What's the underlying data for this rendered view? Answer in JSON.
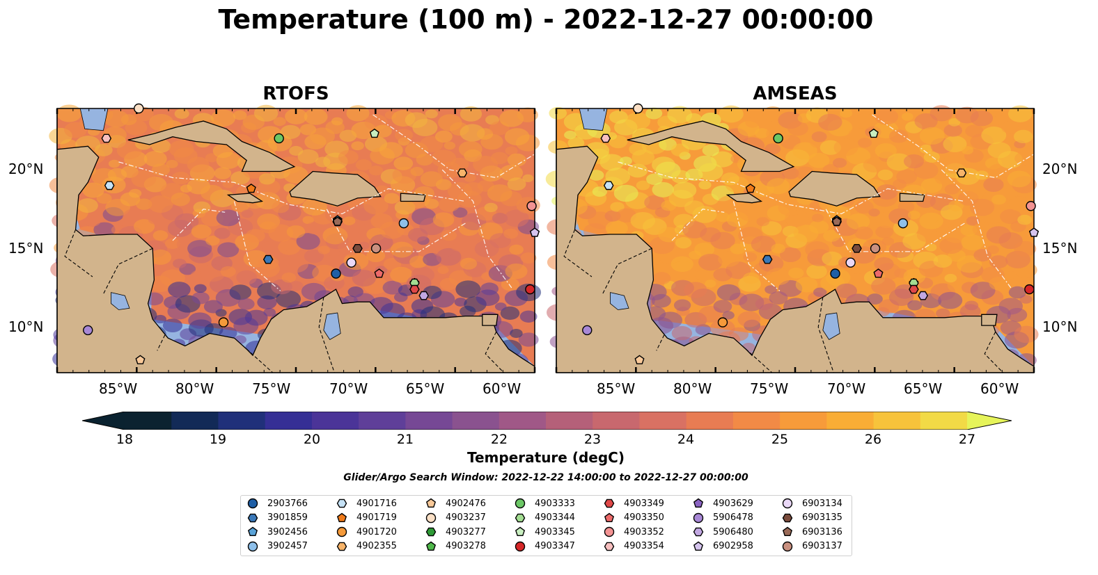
{
  "title": "Temperature (100 m) - 2022-12-27 00:00:00",
  "panels": [
    {
      "title": "RTOFS",
      "mode": "rtofs"
    },
    {
      "title": "AMSEAS",
      "mode": "amseas"
    }
  ],
  "axes": {
    "lon_labels": [
      "85°W",
      "80°W",
      "75°W",
      "70°W",
      "65°W",
      "60°W"
    ],
    "lat_labels": [
      "20°N",
      "15°N",
      "10°N"
    ],
    "lon_range": [
      -89.5,
      -58.5
    ],
    "lat_range": [
      7.1,
      23.9
    ]
  },
  "colorbar": {
    "label": "Temperature (degC)",
    "ticks": [
      "18",
      "19",
      "20",
      "21",
      "22",
      "23",
      "24",
      "25",
      "26",
      "27"
    ],
    "range": [
      18,
      27
    ],
    "colors": [
      "#0b2230",
      "#122a57",
      "#20307a",
      "#352f95",
      "#4b3498",
      "#5f3f99",
      "#764895",
      "#8a528f",
      "#a05887",
      "#b56079",
      "#c8686e",
      "#d97163",
      "#e87c53",
      "#f28a46",
      "#f79b3a",
      "#f9ad35",
      "#f7c33b",
      "#f2da46"
    ],
    "under_color": "#0a2230",
    "over_color": "#e6f45a"
  },
  "colors": {
    "land": "#d2b48c",
    "outside_ocean": "#96b4e0"
  },
  "search_window": "Glider/Argo Search Window: 2022-12-22 14:00:00 to 2022-12-27 00:00:00",
  "platforms": [
    {
      "id": "2903766",
      "marker": "circle",
      "color": "#1f5fa6"
    },
    {
      "id": "3901859",
      "marker": "hexagon",
      "color": "#3a78b8"
    },
    {
      "id": "3902456",
      "marker": "pentagon",
      "color": "#5aa3d8"
    },
    {
      "id": "3902457",
      "marker": "circle",
      "color": "#8ec0ea"
    },
    {
      "id": "4901716",
      "marker": "hexagon",
      "color": "#c6e2f6"
    },
    {
      "id": "4901719",
      "marker": "pentagon",
      "color": "#f07b1a"
    },
    {
      "id": "4901720",
      "marker": "circle",
      "color": "#f59a3a"
    },
    {
      "id": "4902355",
      "marker": "hexagon",
      "color": "#f7b46a"
    },
    {
      "id": "4902476",
      "marker": "pentagon",
      "color": "#f9c999"
    },
    {
      "id": "4903237",
      "marker": "circle",
      "color": "#fbe0c6"
    },
    {
      "id": "4903277",
      "marker": "hexagon",
      "color": "#2e9a36"
    },
    {
      "id": "4903278",
      "marker": "pentagon",
      "color": "#4fb84a"
    },
    {
      "id": "4903333",
      "marker": "circle",
      "color": "#6cc766"
    },
    {
      "id": "4903344",
      "marker": "hexagon",
      "color": "#a3dd92"
    },
    {
      "id": "4903345",
      "marker": "pentagon",
      "color": "#c8eec0"
    },
    {
      "id": "4903347",
      "marker": "circle",
      "color": "#d62728"
    },
    {
      "id": "4903349",
      "marker": "hexagon",
      "color": "#e04848"
    },
    {
      "id": "4903350",
      "marker": "pentagon",
      "color": "#ec6a6a"
    },
    {
      "id": "4903352",
      "marker": "circle",
      "color": "#f39393"
    },
    {
      "id": "4903354",
      "marker": "hexagon",
      "color": "#f8c0c0"
    },
    {
      "id": "4903629",
      "marker": "pentagon",
      "color": "#8a63c2"
    },
    {
      "id": "5906478",
      "marker": "circle",
      "color": "#a888d6"
    },
    {
      "id": "5906480",
      "marker": "hexagon",
      "color": "#c2a8e2"
    },
    {
      "id": "6902958",
      "marker": "pentagon",
      "color": "#d5c4ee"
    },
    {
      "id": "6903134",
      "marker": "circle",
      "color": "#ead8f7"
    },
    {
      "id": "6903135",
      "marker": "hexagon",
      "color": "#7a4b3c"
    },
    {
      "id": "6903136",
      "marker": "pentagon",
      "color": "#9a6a58"
    },
    {
      "id": "6903137",
      "marker": "circle",
      "color": "#c99080"
    }
  ],
  "positions": [
    {
      "id": "2903766",
      "lon": -71.4,
      "lat": 13.4
    },
    {
      "id": "3901859",
      "lon": -75.8,
      "lat": 14.3
    },
    {
      "id": "3902456",
      "lon": -71.3,
      "lat": 16.8
    },
    {
      "id": "3902457",
      "lon": -67.0,
      "lat": 16.6
    },
    {
      "id": "4901716",
      "lon": -86.1,
      "lat": 19.0
    },
    {
      "id": "4901719",
      "lon": -76.9,
      "lat": 18.8
    },
    {
      "id": "4901720",
      "lon": -78.7,
      "lat": 10.3
    },
    {
      "id": "4902355",
      "lon": -63.2,
      "lat": 19.8
    },
    {
      "id": "4902476",
      "lon": -84.1,
      "lat": 7.9
    },
    {
      "id": "4903237",
      "lon": -84.2,
      "lat": 23.9
    },
    {
      "id": "4903277",
      "lon": -71.3,
      "lat": 16.7
    },
    {
      "id": "4903278",
      "lon": -66.3,
      "lat": 12.8
    },
    {
      "id": "4903333",
      "lon": -75.1,
      "lat": 22.0
    },
    {
      "id": "4903344",
      "lon": -66.3,
      "lat": 12.8
    },
    {
      "id": "4903345",
      "lon": -68.9,
      "lat": 22.3
    },
    {
      "id": "4903347",
      "lon": -58.8,
      "lat": 12.4
    },
    {
      "id": "4903349",
      "lon": -66.3,
      "lat": 12.4
    },
    {
      "id": "4903350",
      "lon": -68.6,
      "lat": 13.4
    },
    {
      "id": "4903352",
      "lon": -58.7,
      "lat": 17.7
    },
    {
      "id": "4903354",
      "lon": -86.3,
      "lat": 22.0
    },
    {
      "id": "4903629",
      "lon": -58.5,
      "lat": 16.0
    },
    {
      "id": "5906478",
      "lon": -87.5,
      "lat": 9.8
    },
    {
      "id": "5906480",
      "lon": -65.7,
      "lat": 12.0
    },
    {
      "id": "6902958",
      "lon": -58.5,
      "lat": 16.0
    },
    {
      "id": "6903134",
      "lon": -70.4,
      "lat": 14.1
    },
    {
      "id": "6903135",
      "lon": -70.0,
      "lat": 15.0
    },
    {
      "id": "6903136",
      "lon": -71.3,
      "lat": 16.7
    },
    {
      "id": "6903137",
      "lon": -68.8,
      "lat": 15.0
    }
  ]
}
